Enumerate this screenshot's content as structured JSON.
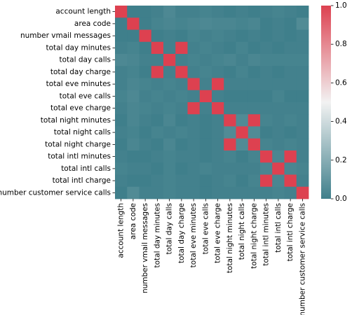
{
  "chart_data": {
    "type": "heatmap",
    "title": "",
    "xlabel": "",
    "ylabel": "",
    "labels": [
      "account length",
      "area code",
      "number vmail messages",
      "total day minutes",
      "total day calls",
      "total day charge",
      "total eve minutes",
      "total eve calls",
      "total eve charge",
      "total night minutes",
      "total night calls",
      "total night charge",
      "total intl minutes",
      "total intl calls",
      "total intl charge",
      "number customer service calls"
    ],
    "matrix": [
      [
        1.0,
        0.0,
        0.0,
        0.01,
        0.04,
        0.01,
        0.01,
        0.02,
        0.01,
        0.0,
        0.01,
        0.0,
        0.01,
        0.02,
        0.01,
        0.0
      ],
      [
        0.0,
        1.0,
        0.0,
        0.02,
        0.03,
        0.02,
        0.03,
        0.04,
        0.03,
        0.03,
        0.02,
        0.03,
        0.0,
        0.01,
        0.0,
        0.05
      ],
      [
        0.0,
        0.0,
        1.0,
        0.0,
        0.01,
        0.0,
        0.02,
        0.01,
        0.02,
        0.01,
        0.0,
        0.01,
        0.0,
        0.01,
        0.0,
        0.01
      ],
      [
        0.01,
        0.02,
        0.0,
        1.0,
        0.01,
        1.0,
        0.01,
        0.02,
        0.01,
        0.0,
        0.02,
        0.0,
        0.01,
        0.0,
        0.01,
        0.01
      ],
      [
        0.04,
        0.03,
        0.01,
        0.01,
        1.0,
        0.01,
        0.02,
        0.01,
        0.02,
        0.03,
        0.01,
        0.03,
        0.02,
        0.02,
        0.02,
        0.02
      ],
      [
        0.01,
        0.02,
        0.0,
        1.0,
        0.01,
        1.0,
        0.01,
        0.02,
        0.01,
        0.0,
        0.02,
        0.0,
        0.01,
        0.0,
        0.01,
        0.01
      ],
      [
        0.01,
        0.03,
        0.02,
        0.01,
        0.02,
        0.01,
        1.0,
        0.01,
        1.0,
        0.01,
        0.01,
        0.01,
        0.01,
        0.01,
        0.01,
        0.01
      ],
      [
        0.02,
        0.04,
        0.01,
        0.02,
        0.01,
        0.02,
        0.01,
        1.0,
        0.01,
        0.0,
        0.0,
        0.0,
        0.0,
        0.02,
        0.0,
        0.0
      ],
      [
        0.01,
        0.03,
        0.02,
        0.01,
        0.02,
        0.01,
        1.0,
        0.01,
        1.0,
        0.01,
        0.01,
        0.01,
        0.01,
        0.01,
        0.01,
        0.01
      ],
      [
        0.0,
        0.03,
        0.01,
        0.0,
        0.03,
        0.0,
        0.01,
        0.0,
        0.01,
        1.0,
        0.05,
        1.0,
        0.02,
        0.01,
        0.02,
        0.01
      ],
      [
        0.01,
        0.02,
        0.0,
        0.02,
        0.01,
        0.02,
        0.01,
        0.0,
        0.01,
        0.05,
        1.0,
        0.05,
        0.0,
        0.01,
        0.0,
        0.01
      ],
      [
        0.0,
        0.03,
        0.01,
        0.0,
        0.03,
        0.0,
        0.01,
        0.0,
        0.01,
        1.0,
        0.05,
        1.0,
        0.02,
        0.01,
        0.02,
        0.01
      ],
      [
        0.01,
        0.0,
        0.0,
        0.01,
        0.02,
        0.01,
        0.01,
        0.0,
        0.01,
        0.02,
        0.0,
        0.02,
        1.0,
        0.03,
        1.0,
        0.01
      ],
      [
        0.02,
        0.01,
        0.01,
        0.0,
        0.02,
        0.0,
        0.01,
        0.02,
        0.01,
        0.01,
        0.01,
        0.01,
        0.03,
        1.0,
        0.03,
        0.02
      ],
      [
        0.01,
        0.0,
        0.0,
        0.01,
        0.02,
        0.01,
        0.01,
        0.0,
        0.01,
        0.02,
        0.0,
        0.02,
        1.0,
        0.03,
        1.0,
        0.01
      ],
      [
        0.0,
        0.05,
        0.01,
        0.01,
        0.02,
        0.01,
        0.01,
        0.0,
        0.01,
        0.01,
        0.01,
        0.01,
        0.01,
        0.02,
        0.01,
        1.0
      ]
    ],
    "vmin": 0.0,
    "vmax": 1.0,
    "colorbar": {
      "ticks": [
        0.0,
        0.2,
        0.4,
        0.6,
        0.8,
        1.0
      ],
      "tick_labels": [
        "0.0",
        "0.2",
        "0.4",
        "0.6",
        "0.8",
        "1.0"
      ]
    },
    "colors": {
      "low": "#3f7f8b",
      "mid": "#f2f2f2",
      "high": "#dd4150"
    },
    "legend_placement": "right"
  }
}
